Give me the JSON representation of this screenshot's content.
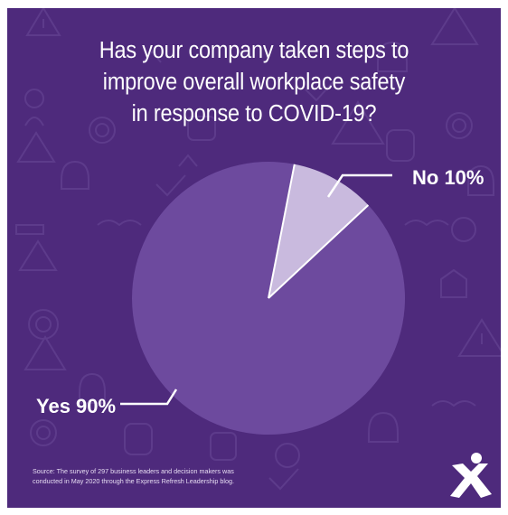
{
  "colors": {
    "background": "#4e2a7c",
    "yes_slice": "#6d4a9e",
    "no_slice": "#c9bade",
    "text": "#ffffff"
  },
  "chart_data": {
    "type": "pie",
    "title": "Has your company taken steps to improve overall workplace safety in response to COVID-19?",
    "title_lines": [
      "Has your company taken steps to",
      "improve overall workplace safety",
      "in response to COVID-19?"
    ],
    "slices": [
      {
        "label": "No 10%",
        "value": 10,
        "color": "#c9bade"
      },
      {
        "label": "Yes 90%",
        "value": 90,
        "color": "#6d4a9e"
      }
    ]
  },
  "source_lines": [
    "Source: The survey of 297 business leaders and decision makers was",
    "conducted in May 2020 through the Express Refresh Leadership blog."
  ],
  "logo_icon": "express-x-logo-icon"
}
